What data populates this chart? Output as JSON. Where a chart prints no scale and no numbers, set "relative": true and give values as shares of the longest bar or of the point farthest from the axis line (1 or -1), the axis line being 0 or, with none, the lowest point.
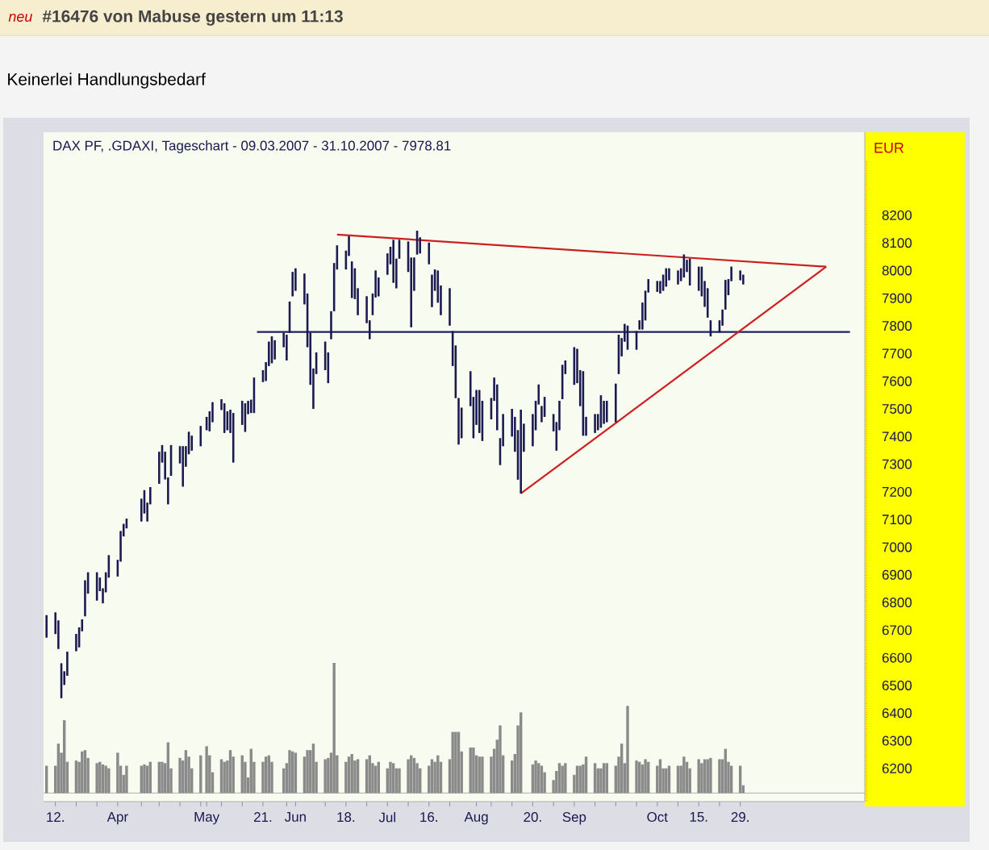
{
  "chart_data": [
    {
      "type": "candlestick",
      "title": "DAX PF, .GDAXI, Tageschart - 09.03.2007 - 31.10.2007 - 7978.81",
      "ylabel": "EUR",
      "annotations": [
        "neu",
        "#16476 von Mabuse gestern um 11:13",
        "Keinerlei Handlungsbedarf"
      ],
      "x": [
        "2007-03-09",
        "2007-03-12",
        "2007-03-13",
        "2007-03-14",
        "2007-03-15",
        "2007-03-16",
        "2007-03-19",
        "2007-03-20",
        "2007-03-21",
        "2007-03-22",
        "2007-03-23",
        "2007-03-26",
        "2007-03-27",
        "2007-03-28",
        "2007-03-29",
        "2007-03-30",
        "2007-04-02",
        "2007-04-03",
        "2007-04-04",
        "2007-04-05",
        "2007-04-10",
        "2007-04-11",
        "2007-04-12",
        "2007-04-13",
        "2007-04-16",
        "2007-04-17",
        "2007-04-18",
        "2007-04-19",
        "2007-04-20",
        "2007-04-23",
        "2007-04-24",
        "2007-04-25",
        "2007-04-26",
        "2007-04-27",
        "2007-04-30",
        "2007-05-02",
        "2007-05-03",
        "2007-05-04",
        "2007-05-07",
        "2007-05-08",
        "2007-05-09",
        "2007-05-10",
        "2007-05-11",
        "2007-05-14",
        "2007-05-15",
        "2007-05-16",
        "2007-05-17",
        "2007-05-18",
        "2007-05-21",
        "2007-05-22",
        "2007-05-23",
        "2007-05-24",
        "2007-05-25",
        "2007-05-28",
        "2007-05-29",
        "2007-05-30",
        "2007-05-31",
        "2007-06-01",
        "2007-06-04",
        "2007-06-05",
        "2007-06-06",
        "2007-06-07",
        "2007-06-08",
        "2007-06-11",
        "2007-06-12",
        "2007-06-13",
        "2007-06-14",
        "2007-06-15",
        "2007-06-18",
        "2007-06-19",
        "2007-06-20",
        "2007-06-21",
        "2007-06-22",
        "2007-06-25",
        "2007-06-26",
        "2007-06-27",
        "2007-06-28",
        "2007-06-29",
        "2007-07-02",
        "2007-07-03",
        "2007-07-04",
        "2007-07-05",
        "2007-07-06",
        "2007-07-09",
        "2007-07-10",
        "2007-07-11",
        "2007-07-12",
        "2007-07-13",
        "2007-07-16",
        "2007-07-17",
        "2007-07-18",
        "2007-07-19",
        "2007-07-20",
        "2007-07-23",
        "2007-07-24",
        "2007-07-25",
        "2007-07-26",
        "2007-07-27",
        "2007-07-30",
        "2007-07-31",
        "2007-08-01",
        "2007-08-02",
        "2007-08-03",
        "2007-08-06",
        "2007-08-07",
        "2007-08-08",
        "2007-08-09",
        "2007-08-10",
        "2007-08-13",
        "2007-08-14",
        "2007-08-15",
        "2007-08-16",
        "2007-08-17",
        "2007-08-20",
        "2007-08-21",
        "2007-08-22",
        "2007-08-23",
        "2007-08-24",
        "2007-08-27",
        "2007-08-28",
        "2007-08-29",
        "2007-08-30",
        "2007-08-31",
        "2007-09-03",
        "2007-09-04",
        "2007-09-05",
        "2007-09-06",
        "2007-09-07",
        "2007-09-10",
        "2007-09-11",
        "2007-09-12",
        "2007-09-13",
        "2007-09-14",
        "2007-09-17",
        "2007-09-18",
        "2007-09-19",
        "2007-09-20",
        "2007-09-21",
        "2007-09-24",
        "2007-09-25",
        "2007-09-26",
        "2007-09-27",
        "2007-09-28",
        "2007-10-01",
        "2007-10-02",
        "2007-10-03",
        "2007-10-04",
        "2007-10-05",
        "2007-10-08",
        "2007-10-09",
        "2007-10-10",
        "2007-10-11",
        "2007-10-12",
        "2007-10-15",
        "2007-10-16",
        "2007-10-17",
        "2007-10-18",
        "2007-10-19",
        "2007-10-22",
        "2007-10-23",
        "2007-10-24",
        "2007-10-25",
        "2007-10-26",
        "2007-10-29",
        "2007-10-30"
      ],
      "ohlc": [
        [
          6673,
          6754,
          6673,
          6754
        ],
        [
          6686,
          6764,
          6686,
          6764
        ],
        [
          6632,
          6735,
          6632,
          6735
        ],
        [
          6454,
          6580,
          6454,
          6580
        ],
        [
          6502,
          6551,
          6502,
          6551
        ],
        [
          6535,
          6622,
          6535,
          6622
        ],
        [
          6624,
          6686,
          6624,
          6686
        ],
        [
          6638,
          6710,
          6638,
          6710
        ],
        [
          6696,
          6739,
          6696,
          6739
        ],
        [
          6750,
          6880,
          6750,
          6880
        ],
        [
          6832,
          6909,
          6832,
          6909
        ],
        [
          6807,
          6909,
          6807,
          6909
        ],
        [
          6841,
          6890,
          6841,
          6890
        ],
        [
          6797,
          6851,
          6797,
          6851
        ],
        [
          6837,
          6909,
          6837,
          6909
        ],
        [
          6890,
          6971,
          6890,
          6971
        ],
        [
          6894,
          6954,
          6894,
          6954
        ],
        [
          6948,
          7058,
          6948,
          7058
        ],
        [
          7039,
          7084,
          7039,
          7084
        ],
        [
          7068,
          7103,
          7068,
          7103
        ],
        [
          7093,
          7175,
          7093,
          7175
        ],
        [
          7122,
          7206,
          7122,
          7206
        ],
        [
          7093,
          7161,
          7093,
          7161
        ],
        [
          7155,
          7217,
          7155,
          7217
        ],
        [
          7229,
          7345,
          7229,
          7345
        ],
        [
          7306,
          7369,
          7306,
          7369
        ],
        [
          7245,
          7345,
          7245,
          7345
        ],
        [
          7155,
          7252,
          7155,
          7252
        ],
        [
          7258,
          7369,
          7258,
          7369
        ],
        [
          7303,
          7365,
          7303,
          7365
        ],
        [
          7219,
          7365,
          7219,
          7365
        ],
        [
          7291,
          7365,
          7291,
          7365
        ],
        [
          7336,
          7417,
          7336,
          7417
        ],
        [
          7349,
          7403,
          7349,
          7403
        ],
        [
          7365,
          7438,
          7365,
          7438
        ],
        [
          7423,
          7471,
          7423,
          7471
        ],
        [
          7419,
          7491,
          7419,
          7491
        ],
        [
          7452,
          7524,
          7452,
          7524
        ],
        [
          7496,
          7535,
          7496,
          7535
        ],
        [
          7413,
          7520,
          7413,
          7520
        ],
        [
          7423,
          7491,
          7423,
          7491
        ],
        [
          7413,
          7497,
          7413,
          7497
        ],
        [
          7306,
          7485,
          7306,
          7485
        ],
        [
          7442,
          7529,
          7442,
          7529
        ],
        [
          7417,
          7520,
          7417,
          7520
        ],
        [
          7481,
          7529,
          7481,
          7529
        ],
        [
          7485,
          7533,
          7485,
          7533
        ],
        [
          7485,
          7613,
          7485,
          7613
        ],
        [
          7597,
          7640,
          7597,
          7640
        ],
        [
          7601,
          7669,
          7601,
          7669
        ],
        [
          7655,
          7743,
          7655,
          7743
        ],
        [
          7665,
          7762,
          7665,
          7762
        ],
        [
          7679,
          7748,
          7679,
          7748
        ],
        [
          7723,
          7775,
          7723,
          7775
        ],
        [
          7675,
          7768,
          7675,
          7768
        ],
        [
          7775,
          7888,
          7775,
          7888
        ],
        [
          7907,
          7995,
          7907,
          7995
        ],
        [
          7927,
          8008,
          7927,
          8008
        ],
        [
          7878,
          7989,
          7878,
          7989
        ],
        [
          7723,
          7917,
          7723,
          7917
        ],
        [
          7587,
          7775,
          7587,
          7775
        ],
        [
          7500,
          7646,
          7500,
          7646
        ],
        [
          7626,
          7704,
          7626,
          7704
        ],
        [
          7640,
          7743,
          7640,
          7743
        ],
        [
          7593,
          7704,
          7593,
          7704
        ],
        [
          7752,
          7853,
          7752,
          7853
        ],
        [
          7853,
          8027,
          7853,
          8027
        ],
        [
          8004,
          8091,
          8004,
          8091
        ],
        [
          8004,
          8072,
          8004,
          8072
        ],
        [
          8053,
          8124,
          8053,
          8124
        ],
        [
          7901,
          8033,
          7901,
          8033
        ],
        [
          7897,
          8008,
          7897,
          8008
        ],
        [
          7839,
          7936,
          7839,
          7936
        ],
        [
          7810,
          7907,
          7810,
          7907
        ],
        [
          7752,
          7820,
          7752,
          7820
        ],
        [
          7839,
          7917,
          7839,
          7917
        ],
        [
          7903,
          8000,
          7903,
          8000
        ],
        [
          7907,
          7975,
          7907,
          7975
        ],
        [
          7985,
          8062,
          7985,
          8062
        ],
        [
          8023,
          8086,
          8023,
          8086
        ],
        [
          7956,
          8111,
          7956,
          8111
        ],
        [
          7936,
          8043,
          7936,
          8043
        ],
        [
          8043,
          8111,
          8043,
          8111
        ],
        [
          7995,
          8105,
          7995,
          8105
        ],
        [
          7795,
          8047,
          7795,
          8047
        ],
        [
          7927,
          8047,
          7927,
          8047
        ],
        [
          8058,
          8144,
          8058,
          8144
        ],
        [
          8062,
          8120,
          8062,
          8120
        ],
        [
          8023,
          8101,
          8023,
          8101
        ],
        [
          7868,
          7985,
          7868,
          7985
        ],
        [
          7927,
          8004,
          7927,
          8004
        ],
        [
          7884,
          8000,
          7884,
          8000
        ],
        [
          7839,
          7946,
          7839,
          7946
        ],
        [
          7801,
          7936,
          7801,
          7936
        ],
        [
          7655,
          7781,
          7655,
          7781
        ],
        [
          7539,
          7729,
          7539,
          7729
        ],
        [
          7371,
          7539,
          7371,
          7539
        ],
        [
          7394,
          7504,
          7394,
          7504
        ],
        [
          7510,
          7636,
          7510,
          7636
        ],
        [
          7394,
          7543,
          7394,
          7543
        ],
        [
          7442,
          7568,
          7442,
          7568
        ],
        [
          7413,
          7568,
          7413,
          7568
        ],
        [
          7384,
          7529,
          7384,
          7529
        ],
        [
          7462,
          7539,
          7462,
          7539
        ],
        [
          7529,
          7613,
          7529,
          7613
        ],
        [
          7423,
          7588,
          7423,
          7588
        ],
        [
          7297,
          7394,
          7297,
          7394
        ],
        [
          7365,
          7481,
          7365,
          7481
        ],
        [
          7400,
          7500,
          7400,
          7500
        ],
        [
          7345,
          7471,
          7345,
          7471
        ],
        [
          7244,
          7423,
          7244,
          7423
        ],
        [
          7194,
          7497,
          7194,
          7497
        ],
        [
          7345,
          7446,
          7345,
          7446
        ],
        [
          7365,
          7481,
          7365,
          7481
        ],
        [
          7423,
          7529,
          7423,
          7529
        ],
        [
          7516,
          7588,
          7516,
          7588
        ],
        [
          7452,
          7510,
          7452,
          7510
        ],
        [
          7471,
          7543,
          7471,
          7543
        ],
        [
          7419,
          7481,
          7419,
          7481
        ],
        [
          7349,
          7452,
          7349,
          7452
        ],
        [
          7423,
          7529,
          7423,
          7529
        ],
        [
          7535,
          7659,
          7535,
          7659
        ],
        [
          7626,
          7675,
          7626,
          7675
        ],
        [
          7587,
          7723,
          7587,
          7723
        ],
        [
          7593,
          7717,
          7593,
          7717
        ],
        [
          7510,
          7640,
          7510,
          7640
        ],
        [
          7403,
          7636,
          7403,
          7636
        ],
        [
          7403,
          7471,
          7403,
          7471
        ],
        [
          7413,
          7481,
          7413,
          7481
        ],
        [
          7423,
          7481,
          7423,
          7481
        ],
        [
          7432,
          7549,
          7432,
          7549
        ],
        [
          7446,
          7529,
          7446,
          7529
        ],
        [
          7452,
          7529,
          7452,
          7529
        ],
        [
          7452,
          7591,
          7452,
          7591
        ],
        [
          7626,
          7768,
          7626,
          7768
        ],
        [
          7690,
          7756,
          7690,
          7756
        ],
        [
          7743,
          7807,
          7743,
          7807
        ],
        [
          7714,
          7801,
          7714,
          7801
        ],
        [
          7714,
          7781,
          7714,
          7781
        ],
        [
          7787,
          7820,
          7787,
          7820
        ],
        [
          7787,
          7884,
          7787,
          7884
        ],
        [
          7820,
          7927,
          7820,
          7927
        ],
        [
          7921,
          7969,
          7921,
          7969
        ],
        [
          7923,
          7962,
          7923,
          7962
        ],
        [
          7917,
          7962,
          7917,
          7962
        ],
        [
          7927,
          7985,
          7927,
          7985
        ],
        [
          7942,
          8008,
          7942,
          8008
        ],
        [
          7965,
          8008,
          7965,
          8008
        ],
        [
          7950,
          8000,
          7950,
          8000
        ],
        [
          7962,
          8008,
          7962,
          8008
        ],
        [
          7975,
          8058,
          7975,
          8058
        ],
        [
          7995,
          8039,
          7995,
          8039
        ],
        [
          7946,
          8043,
          7946,
          8043
        ],
        [
          7927,
          8014,
          7927,
          8014
        ],
        [
          7907,
          8014,
          7907,
          8014
        ],
        [
          7869,
          7962,
          7869,
          7962
        ],
        [
          7830,
          7936,
          7830,
          7936
        ],
        [
          7762,
          7820,
          7762,
          7820
        ],
        [
          7776,
          7820,
          7776,
          7820
        ],
        [
          7801,
          7859,
          7801,
          7859
        ],
        [
          7859,
          7966,
          7859,
          7966
        ],
        [
          7911,
          7969,
          7911,
          7969
        ],
        [
          7962,
          8014,
          7962,
          8014
        ],
        [
          7965,
          8000,
          7965,
          8000
        ],
        [
          7950,
          7985,
          7950,
          7985
        ]
      ],
      "color": "#1a1a50",
      "series": [
        {
          "type": "line",
          "x": [
            "2007-05-19",
            "2007-12-05"
          ],
          "values": [
            7778,
            7778
          ],
          "color": "#202060"
        },
        {
          "type": "line",
          "x": [
            "2007-06-15",
            "2007-11-27"
          ],
          "values": [
            8130,
            8014
          ],
          "color": "#cc2020"
        },
        {
          "type": "line",
          "x": [
            "2007-08-16",
            "2007-11-27"
          ],
          "values": [
            7194,
            8014
          ],
          "color": "#cc2020"
        }
      ],
      "xlim": [
        "2007-03-08",
        "2007-12-10"
      ],
      "ylim": [
        6080,
        8500
      ],
      "xticks": [
        {
          "value": "2007-03-12",
          "label": "12."
        },
        {
          "value": "2007-03-19",
          "label": null
        },
        {
          "value": "2007-03-26",
          "label": null
        },
        {
          "value": "2007-04-02",
          "label": "Apr"
        },
        {
          "value": "2007-04-10",
          "label": null
        },
        {
          "value": "2007-04-16",
          "label": null
        },
        {
          "value": "2007-04-23",
          "label": null
        },
        {
          "value": "2007-04-30",
          "label": null
        },
        {
          "value": "2007-05-02",
          "label": "May"
        },
        {
          "value": "2007-05-07",
          "label": null
        },
        {
          "value": "2007-05-14",
          "label": null
        },
        {
          "value": "2007-05-21",
          "label": "21."
        },
        {
          "value": "2007-05-29",
          "label": null
        },
        {
          "value": "2007-06-01",
          "label": "Jun"
        },
        {
          "value": "2007-06-11",
          "label": null
        },
        {
          "value": "2007-06-18",
          "label": "18."
        },
        {
          "value": "2007-06-25",
          "label": null
        },
        {
          "value": "2007-07-02",
          "label": "Jul"
        },
        {
          "value": "2007-07-09",
          "label": null
        },
        {
          "value": "2007-07-16",
          "label": "16."
        },
        {
          "value": "2007-07-23",
          "label": null
        },
        {
          "value": "2007-08-01",
          "label": "Aug"
        },
        {
          "value": "2007-08-06",
          "label": null
        },
        {
          "value": "2007-08-13",
          "label": null
        },
        {
          "value": "2007-08-20",
          "label": "20."
        },
        {
          "value": "2007-08-27",
          "label": null
        },
        {
          "value": "2007-09-03",
          "label": "Sep"
        },
        {
          "value": "2007-09-10",
          "label": null
        },
        {
          "value": "2007-09-17",
          "label": null
        },
        {
          "value": "2007-09-24",
          "label": null
        },
        {
          "value": "2007-10-01",
          "label": "Oct"
        },
        {
          "value": "2007-10-08",
          "label": null
        },
        {
          "value": "2007-10-15",
          "label": "15."
        },
        {
          "value": "2007-10-22",
          "label": null
        },
        {
          "value": "2007-10-29",
          "label": "29."
        }
      ],
      "yticks": [
        6200,
        6300,
        6400,
        6500,
        6600,
        6700,
        6800,
        6900,
        7000,
        7100,
        7200,
        7300,
        7400,
        7500,
        7600,
        7700,
        7800,
        7900,
        8000,
        8100,
        8200
      ]
    },
    {
      "type": "bar",
      "relative": true,
      "color": "#8a8a8a",
      "xlim": [
        "2007-03-08",
        "2007-12-10"
      ],
      "x": [
        "2007-03-09",
        "2007-03-12",
        "2007-03-13",
        "2007-03-14",
        "2007-03-15",
        "2007-03-16",
        "2007-03-19",
        "2007-03-20",
        "2007-03-21",
        "2007-03-22",
        "2007-03-23",
        "2007-03-26",
        "2007-03-27",
        "2007-03-28",
        "2007-03-29",
        "2007-03-30",
        "2007-04-02",
        "2007-04-03",
        "2007-04-04",
        "2007-04-05",
        "2007-04-10",
        "2007-04-11",
        "2007-04-12",
        "2007-04-13",
        "2007-04-16",
        "2007-04-17",
        "2007-04-18",
        "2007-04-19",
        "2007-04-20",
        "2007-04-23",
        "2007-04-24",
        "2007-04-25",
        "2007-04-26",
        "2007-04-27",
        "2007-04-30",
        "2007-05-02",
        "2007-05-03",
        "2007-05-04",
        "2007-05-07",
        "2007-05-08",
        "2007-05-09",
        "2007-05-10",
        "2007-05-11",
        "2007-05-14",
        "2007-05-15",
        "2007-05-16",
        "2007-05-17",
        "2007-05-18",
        "2007-05-21",
        "2007-05-22",
        "2007-05-23",
        "2007-05-24",
        "2007-05-28",
        "2007-05-29",
        "2007-05-30",
        "2007-05-31",
        "2007-06-01",
        "2007-06-04",
        "2007-06-05",
        "2007-06-06",
        "2007-06-07",
        "2007-06-08",
        "2007-06-11",
        "2007-06-12",
        "2007-06-13",
        "2007-06-14",
        "2007-06-15",
        "2007-06-18",
        "2007-06-19",
        "2007-06-20",
        "2007-06-21",
        "2007-06-22",
        "2007-06-25",
        "2007-06-26",
        "2007-06-27",
        "2007-06-28",
        "2007-06-29",
        "2007-07-02",
        "2007-07-03",
        "2007-07-04",
        "2007-07-05",
        "2007-07-06",
        "2007-07-09",
        "2007-07-10",
        "2007-07-11",
        "2007-07-12",
        "2007-07-13",
        "2007-07-16",
        "2007-07-17",
        "2007-07-18",
        "2007-07-19",
        "2007-07-20",
        "2007-07-23",
        "2007-07-24",
        "2007-07-25",
        "2007-07-26",
        "2007-07-27",
        "2007-07-30",
        "2007-07-31",
        "2007-08-01",
        "2007-08-02",
        "2007-08-03",
        "2007-08-06",
        "2007-08-07",
        "2007-08-08",
        "2007-08-09",
        "2007-08-10",
        "2007-08-13",
        "2007-08-14",
        "2007-08-15",
        "2007-08-16",
        "2007-08-20",
        "2007-08-21",
        "2007-08-22",
        "2007-08-23",
        "2007-08-24",
        "2007-08-27",
        "2007-08-28",
        "2007-08-29",
        "2007-08-30",
        "2007-08-31",
        "2007-09-03",
        "2007-09-04",
        "2007-09-05",
        "2007-09-06",
        "2007-09-07",
        "2007-09-10",
        "2007-09-11",
        "2007-09-12",
        "2007-09-13",
        "2007-09-14",
        "2007-09-17",
        "2007-09-18",
        "2007-09-19",
        "2007-09-20",
        "2007-09-21",
        "2007-09-24",
        "2007-09-25",
        "2007-09-26",
        "2007-09-27",
        "2007-09-28",
        "2007-10-01",
        "2007-10-02",
        "2007-10-03",
        "2007-10-04",
        "2007-10-05",
        "2007-10-08",
        "2007-10-09",
        "2007-10-10",
        "2007-10-11",
        "2007-10-12",
        "2007-10-15",
        "2007-10-16",
        "2007-10-17",
        "2007-10-18",
        "2007-10-19",
        "2007-10-22",
        "2007-10-23",
        "2007-10-24",
        "2007-10-25",
        "2007-10-26",
        "2007-10-29",
        "2007-10-30"
      ],
      "values": [
        0.21,
        0.21,
        0.38,
        0.31,
        0.56,
        0.24,
        0.25,
        0.24,
        0.32,
        0.33,
        0.27,
        0.23,
        0.24,
        0.22,
        0.21,
        0.19,
        0.31,
        0.21,
        0.14,
        0.21,
        0.21,
        0.22,
        0.21,
        0.24,
        0.24,
        0.24,
        0.23,
        0.39,
        0.19,
        0.27,
        0.25,
        0.33,
        0.28,
        0.19,
        0.29,
        0.36,
        0.29,
        0.16,
        0.26,
        0.24,
        0.25,
        0.33,
        0.28,
        0.29,
        0.24,
        0.12,
        0.34,
        0.24,
        0.24,
        0.28,
        0.29,
        0.24,
        0.19,
        0.23,
        0.33,
        0.32,
        0.31,
        0.28,
        0.33,
        0.33,
        0.38,
        0.24,
        0.26,
        0.27,
        0.31,
        1,
        0.29,
        0.24,
        0.28,
        0.3,
        0.25,
        0.26,
        0.26,
        0.29,
        0.23,
        0.21,
        0.24,
        0.19,
        0.24,
        0.23,
        0.19,
        0.19,
        0.26,
        0.29,
        0.27,
        0.23,
        0.19,
        0.21,
        0.26,
        0.24,
        0.29,
        0.24,
        0.26,
        0.47,
        0.47,
        0.47,
        0.32,
        0.35,
        0.35,
        0.29,
        0.28,
        0.28,
        0.28,
        0.34,
        0.41,
        0.52,
        0.29,
        0.25,
        0.3,
        0.52,
        0.62,
        0.22,
        0.25,
        0.23,
        0.21,
        0.16,
        0.1,
        0.17,
        0.23,
        0.21,
        0.23,
        0.14,
        0.21,
        0.21,
        0.22,
        0.28,
        0.23,
        0.19,
        0.19,
        0.23,
        0.23,
        0.21,
        0.28,
        0.38,
        0.23,
        0.67,
        0.25,
        0.24,
        0.22,
        0.26,
        0.24,
        0.21,
        0.26,
        0.19,
        0.19,
        0.21,
        0.21,
        0.21,
        0.28,
        0.24,
        0.19,
        0.26,
        0.23,
        0.26,
        0.26,
        0.27,
        0.26,
        0.26,
        0.34,
        0.24,
        0.21,
        0.21,
        0.06
      ]
    }
  ]
}
